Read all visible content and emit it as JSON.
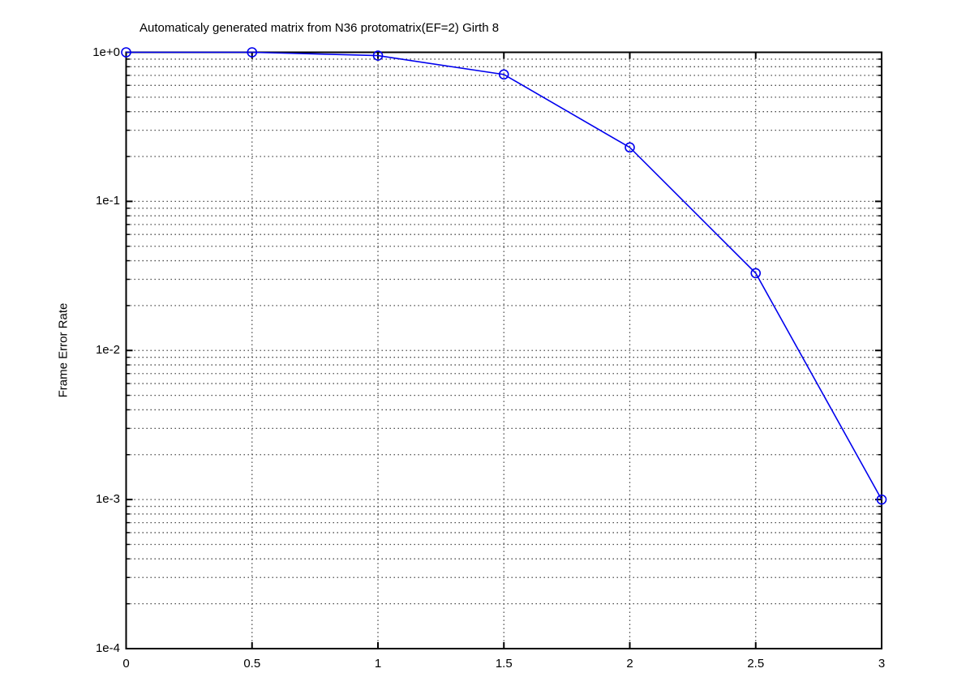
{
  "chart_data": {
    "type": "line",
    "title": "Automaticaly generated matrix from N36 protomatrix(EF=2) Girth 8",
    "xlabel": "",
    "ylabel": "Frame Error Rate",
    "xlim": [
      0,
      3
    ],
    "ylim": [
      0.0001,
      1.0
    ],
    "yscale": "log",
    "grid": "major+minor dotted",
    "legend": "none",
    "x": [
      0,
      0.5,
      1,
      1.5,
      2,
      2.5,
      3
    ],
    "series": [
      {
        "name": "Frame Error Rate",
        "values": [
          1.0,
          1.0,
          0.95,
          0.71,
          0.23,
          0.033,
          0.001
        ],
        "color": "#0000ee",
        "marker": "circle"
      }
    ],
    "xticks": {
      "values": [
        0,
        0.5,
        1,
        1.5,
        2,
        2.5,
        3
      ],
      "labels": [
        "0",
        "0.5",
        "1",
        "1.5",
        "2",
        "2.5",
        "3"
      ]
    },
    "yticks": {
      "values": [
        1,
        0.1,
        0.01,
        0.001,
        0.0001
      ],
      "labels": [
        "1e+0",
        "1e-1",
        "1e-2",
        "1e-3",
        "1e-4"
      ]
    },
    "grid_color": "#3d3d3d",
    "axis_color": "#000000",
    "background_color": "#ffffff"
  }
}
